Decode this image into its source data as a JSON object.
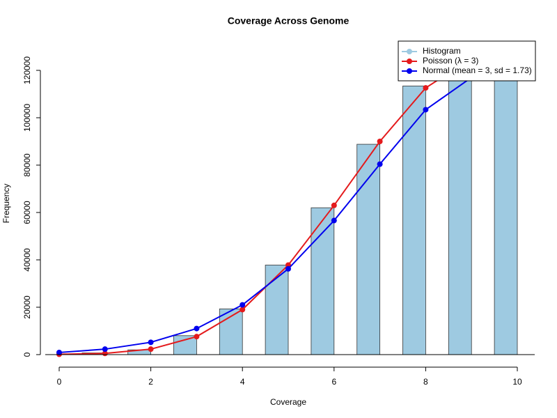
{
  "chart_data": {
    "type": "bar-line",
    "title": "Coverage Across Genome",
    "x_label": "Coverage",
    "y_label": "Frequency",
    "xlim": [
      0,
      10
    ],
    "xticks": [
      0,
      2,
      4,
      6,
      8,
      10
    ],
    "ylim": [
      -5300,
      120000
    ],
    "yticks": [
      0,
      20000,
      40000,
      60000,
      80000,
      100000,
      120000
    ],
    "legend": "top-right",
    "series": [
      {
        "name": "Histogram",
        "type": "bar",
        "color": "#9ecae1",
        "x": [
          1,
          2,
          3,
          4,
          5,
          6,
          7,
          8,
          9,
          10
        ],
        "values": [
          700,
          2000,
          8000,
          19300,
          37800,
          62000,
          88800,
          113400,
          130000,
          130000
        ]
      },
      {
        "name": "Poisson (λ = 3)",
        "type": "line",
        "color": "#e41a1c",
        "x": [
          0,
          1,
          2,
          3,
          4,
          5,
          6,
          7,
          8,
          9
        ],
        "values": [
          150,
          500,
          2300,
          7600,
          19000,
          37800,
          63000,
          90000,
          112600,
          125000
        ]
      },
      {
        "name": "Normal (mean = 3, sd = 1.73)",
        "type": "line",
        "color": "#0000ee",
        "x": [
          0,
          1,
          2,
          3,
          4,
          5,
          6,
          7,
          8,
          9
        ],
        "values": [
          900,
          2300,
          5200,
          11000,
          21000,
          36200,
          56600,
          80400,
          103400,
          117000
        ]
      }
    ]
  }
}
